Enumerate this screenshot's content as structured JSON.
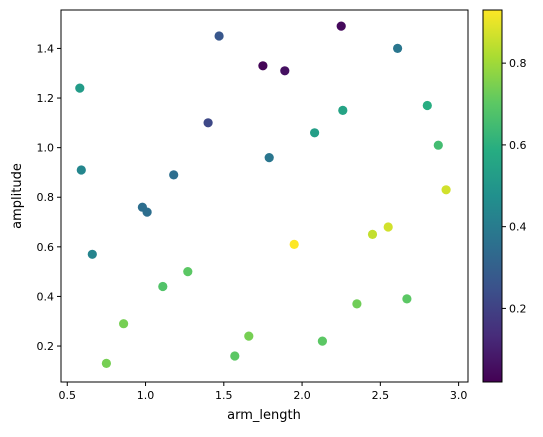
{
  "chart_data": {
    "type": "scatter",
    "title": "",
    "xlabel": "arm_length",
    "ylabel": "amplitude",
    "xlim": [
      0.46,
      3.06
    ],
    "ylim": [
      0.055,
      1.555
    ],
    "xticks": [
      "0.5",
      "1.0",
      "1.5",
      "2.0",
      "2.5",
      "3.0"
    ],
    "yticks": [
      "0.2",
      "0.4",
      "0.6",
      "0.8",
      "1.0",
      "1.2",
      "1.4"
    ],
    "colorbar": {
      "colormap": "viridis",
      "range": [
        0.02,
        0.93
      ],
      "ticks": [
        "0.2",
        "0.4",
        "0.6",
        "0.8"
      ]
    },
    "grid": false,
    "points": [
      {
        "x": 2.25,
        "y": 1.49,
        "c": 0.04
      },
      {
        "x": 1.75,
        "y": 1.33,
        "c": 0.03
      },
      {
        "x": 1.89,
        "y": 1.31,
        "c": 0.06
      },
      {
        "x": 1.47,
        "y": 1.45,
        "c": 0.27
      },
      {
        "x": 1.4,
        "y": 1.1,
        "c": 0.22
      },
      {
        "x": 2.61,
        "y": 1.4,
        "c": 0.38
      },
      {
        "x": 0.58,
        "y": 1.24,
        "c": 0.52
      },
      {
        "x": 0.59,
        "y": 0.91,
        "c": 0.44
      },
      {
        "x": 1.18,
        "y": 0.89,
        "c": 0.35
      },
      {
        "x": 1.79,
        "y": 0.96,
        "c": 0.38
      },
      {
        "x": 0.98,
        "y": 0.76,
        "c": 0.35
      },
      {
        "x": 1.01,
        "y": 0.74,
        "c": 0.35
      },
      {
        "x": 0.66,
        "y": 0.57,
        "c": 0.43
      },
      {
        "x": 2.26,
        "y": 1.15,
        "c": 0.55
      },
      {
        "x": 2.08,
        "y": 1.06,
        "c": 0.53
      },
      {
        "x": 2.8,
        "y": 1.17,
        "c": 0.59
      },
      {
        "x": 2.87,
        "y": 1.01,
        "c": 0.65
      },
      {
        "x": 2.92,
        "y": 0.83,
        "c": 0.87
      },
      {
        "x": 1.95,
        "y": 0.61,
        "c": 0.93
      },
      {
        "x": 2.45,
        "y": 0.65,
        "c": 0.85
      },
      {
        "x": 2.55,
        "y": 0.68,
        "c": 0.87
      },
      {
        "x": 1.27,
        "y": 0.5,
        "c": 0.7
      },
      {
        "x": 1.11,
        "y": 0.44,
        "c": 0.68
      },
      {
        "x": 2.35,
        "y": 0.37,
        "c": 0.73
      },
      {
        "x": 2.67,
        "y": 0.39,
        "c": 0.7
      },
      {
        "x": 0.86,
        "y": 0.29,
        "c": 0.74
      },
      {
        "x": 1.66,
        "y": 0.24,
        "c": 0.74
      },
      {
        "x": 2.13,
        "y": 0.22,
        "c": 0.7
      },
      {
        "x": 1.57,
        "y": 0.16,
        "c": 0.7
      },
      {
        "x": 0.75,
        "y": 0.13,
        "c": 0.74
      }
    ]
  }
}
